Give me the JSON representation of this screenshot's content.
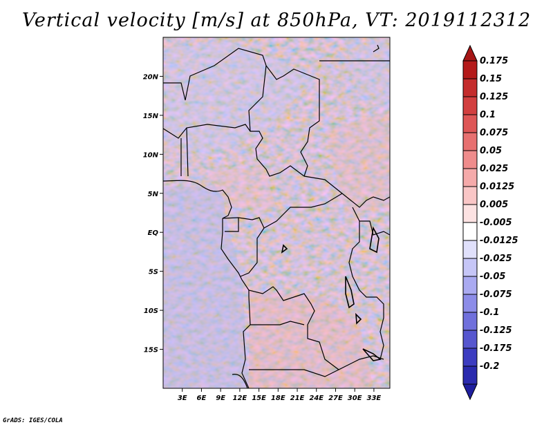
{
  "title": "Vertical velocity [m/s] at 850hPa, VT: 2019112312",
  "footer": "GrADS: IGES/COLA",
  "map": {
    "lat_range": [
      -20,
      25
    ],
    "lon_range": [
      0,
      35.5
    ],
    "lat_labels": [
      {
        "lat": 20,
        "label": "20N"
      },
      {
        "lat": 15,
        "label": "15N"
      },
      {
        "lat": 10,
        "label": "10N"
      },
      {
        "lat": 5,
        "label": "5N"
      },
      {
        "lat": 0,
        "label": "EQ"
      },
      {
        "lat": -5,
        "label": "5S"
      },
      {
        "lat": -10,
        "label": "10S"
      },
      {
        "lat": -15,
        "label": "15S"
      }
    ],
    "lon_labels": [
      {
        "lon": 3,
        "label": "3E"
      },
      {
        "lon": 6,
        "label": "6E"
      },
      {
        "lon": 9,
        "label": "9E"
      },
      {
        "lon": 12,
        "label": "12E"
      },
      {
        "lon": 15,
        "label": "15E"
      },
      {
        "lon": 18,
        "label": "18E"
      },
      {
        "lon": 21,
        "label": "21E"
      },
      {
        "lon": 24,
        "label": "24E"
      },
      {
        "lon": 27,
        "label": "27E"
      },
      {
        "lon": 30,
        "label": "30E"
      },
      {
        "lon": 33,
        "label": "33E"
      }
    ]
  },
  "colorbar": {
    "levels": [
      {
        "label": "0.175",
        "color": "#b41a1a"
      },
      {
        "label": "0.15",
        "color": "#c42c2c"
      },
      {
        "label": "0.125",
        "color": "#d23f3f"
      },
      {
        "label": "0.1",
        "color": "#de5656"
      },
      {
        "label": "0.075",
        "color": "#e77070"
      },
      {
        "label": "0.05",
        "color": "#ef8c8c"
      },
      {
        "label": "0.025",
        "color": "#f5aaaa"
      },
      {
        "label": "0.0125",
        "color": "#f9c6c6"
      },
      {
        "label": "0.005",
        "color": "#fce2e2"
      },
      {
        "label": "-0.005",
        "color": "#ffffff"
      },
      {
        "label": "-0.0125",
        "color": "#e0e0fb"
      },
      {
        "label": "-0.025",
        "color": "#c6c6f7"
      },
      {
        "label": "-0.05",
        "color": "#aaaaf1"
      },
      {
        "label": "-0.075",
        "color": "#8c8ce8"
      },
      {
        "label": "-0.1",
        "color": "#7070dc"
      },
      {
        "label": "-0.125",
        "color": "#5656cf"
      },
      {
        "label": "-0.175",
        "color": "#3c3cc0"
      },
      {
        "label": "-0.2",
        "color": "#2a2aae"
      }
    ],
    "top_color": "#a61616",
    "bottom_color": "#1e1e9e"
  }
}
